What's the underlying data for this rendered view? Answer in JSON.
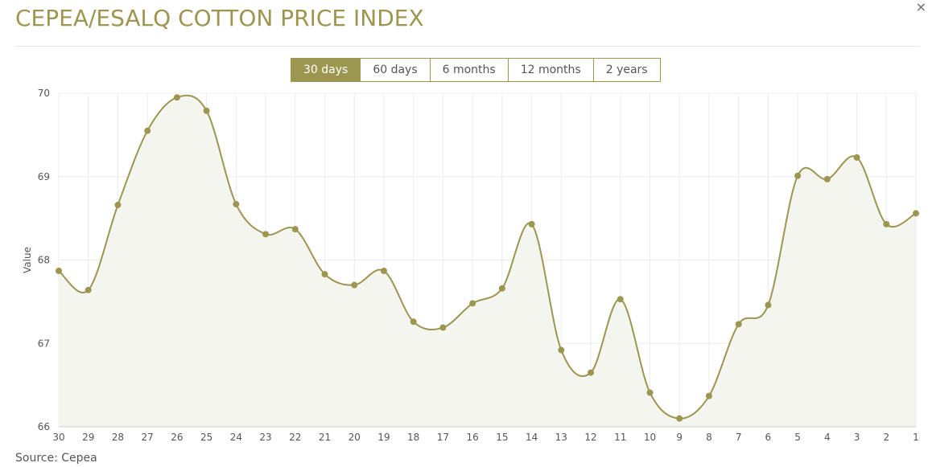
{
  "header": {
    "title": "CEPEA/ESALQ COTTON PRICE INDEX",
    "close_symbol": "×"
  },
  "range_tabs": [
    {
      "label": "30 days",
      "active": true
    },
    {
      "label": "60 days",
      "active": false
    },
    {
      "label": "6 months",
      "active": false
    },
    {
      "label": "12 months",
      "active": false
    },
    {
      "label": "2 years",
      "active": false
    }
  ],
  "footer": {
    "source": "Source: Cepea"
  },
  "colors": {
    "accent": "#9d9650",
    "area_fill": "#f5f5f0",
    "grid": "#ececec",
    "text": "#555555"
  },
  "chart_data": {
    "type": "area",
    "title": "CEPEA/ESALQ COTTON PRICE INDEX",
    "xlabel": "",
    "ylabel": "Value",
    "ylim": [
      66,
      70
    ],
    "yticks": [
      66,
      67,
      68,
      69,
      70
    ],
    "grid": true,
    "legend": "none",
    "categories": [
      "30",
      "29",
      "28",
      "27",
      "26",
      "25",
      "24",
      "23",
      "22",
      "21",
      "20",
      "19",
      "18",
      "17",
      "16",
      "15",
      "14",
      "13",
      "12",
      "11",
      "10",
      "9",
      "8",
      "7",
      "6",
      "5",
      "4",
      "3",
      "2",
      "1"
    ],
    "series": [
      {
        "name": "Value",
        "values": [
          67.87,
          67.64,
          68.66,
          69.55,
          69.95,
          69.79,
          68.67,
          68.31,
          68.37,
          67.83,
          67.7,
          67.87,
          67.26,
          67.19,
          67.48,
          67.66,
          68.43,
          66.92,
          66.65,
          67.53,
          66.41,
          66.1,
          66.37,
          67.23,
          67.46,
          69.01,
          68.97,
          69.23,
          68.43,
          68.56
        ]
      }
    ]
  }
}
